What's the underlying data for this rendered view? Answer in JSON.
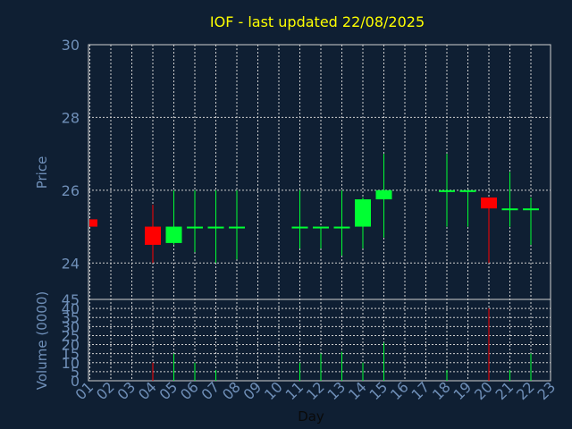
{
  "chart_data": {
    "type": "candlestick",
    "title": "IOF - last updated 22/08/2025",
    "ylabel_price": "Price",
    "ylabel_volume": "Volume (0000)",
    "xlabel": "Day",
    "price_ylim": [
      23,
      30
    ],
    "price_yticks": [
      "24",
      "26",
      "28",
      "30"
    ],
    "volume_ylim": [
      0,
      45
    ],
    "volume_yticks": [
      "0",
      "5",
      "10",
      "15",
      "20",
      "25",
      "30",
      "35",
      "40",
      "45"
    ],
    "x_ticks": [
      "01",
      "02",
      "03",
      "04",
      "05",
      "06",
      "07",
      "08",
      "09",
      "10",
      "11",
      "12",
      "13",
      "14",
      "15",
      "16",
      "17",
      "18",
      "19",
      "20",
      "21",
      "22",
      "23"
    ],
    "up_color": "#00ff33",
    "down_color": "#ff0000",
    "grid": true,
    "candles": [
      {
        "day": 1,
        "open": 25.2,
        "high": 25.2,
        "low": 25.0,
        "close": 25.0,
        "volume": 0
      },
      {
        "day": 4,
        "open": 25.0,
        "high": 25.6,
        "low": 24.0,
        "close": 24.5,
        "volume": 10
      },
      {
        "day": 5,
        "open": 24.55,
        "high": 26.0,
        "low": 24.5,
        "close": 25.0,
        "volume": 15
      },
      {
        "day": 6,
        "open": 25.0,
        "high": 26.0,
        "low": 24.3,
        "close": 25.0,
        "volume": 10
      },
      {
        "day": 7,
        "open": 25.0,
        "high": 26.0,
        "low": 24.0,
        "close": 25.0,
        "volume": 6
      },
      {
        "day": 8,
        "open": 25.0,
        "high": 26.0,
        "low": 24.1,
        "close": 25.0,
        "volume": 0
      },
      {
        "day": 11,
        "open": 25.0,
        "high": 26.0,
        "low": 24.4,
        "close": 25.0,
        "volume": 10
      },
      {
        "day": 12,
        "open": 25.0,
        "high": 25.0,
        "low": 24.4,
        "close": 25.0,
        "volume": 15
      },
      {
        "day": 13,
        "open": 25.0,
        "high": 26.0,
        "low": 24.2,
        "close": 25.0,
        "volume": 16
      },
      {
        "day": 14,
        "open": 25.0,
        "high": 25.8,
        "low": 24.4,
        "close": 25.75,
        "volume": 10
      },
      {
        "day": 15,
        "open": 25.75,
        "high": 27.0,
        "low": 24.7,
        "close": 26.0,
        "volume": 21
      },
      {
        "day": 18,
        "open": 26.0,
        "high": 27.0,
        "low": 25.0,
        "close": 26.0,
        "volume": 6
      },
      {
        "day": 19,
        "open": 26.0,
        "high": 26.0,
        "low": 25.0,
        "close": 26.0,
        "volume": 0
      },
      {
        "day": 20,
        "open": 25.8,
        "high": 25.8,
        "low": 24.0,
        "close": 25.5,
        "volume": 40
      },
      {
        "day": 21,
        "open": 25.5,
        "high": 26.5,
        "low": 25.0,
        "close": 25.5,
        "volume": 6
      },
      {
        "day": 22,
        "open": 25.5,
        "high": 25.8,
        "low": 24.5,
        "close": 25.5,
        "volume": 15
      }
    ]
  }
}
